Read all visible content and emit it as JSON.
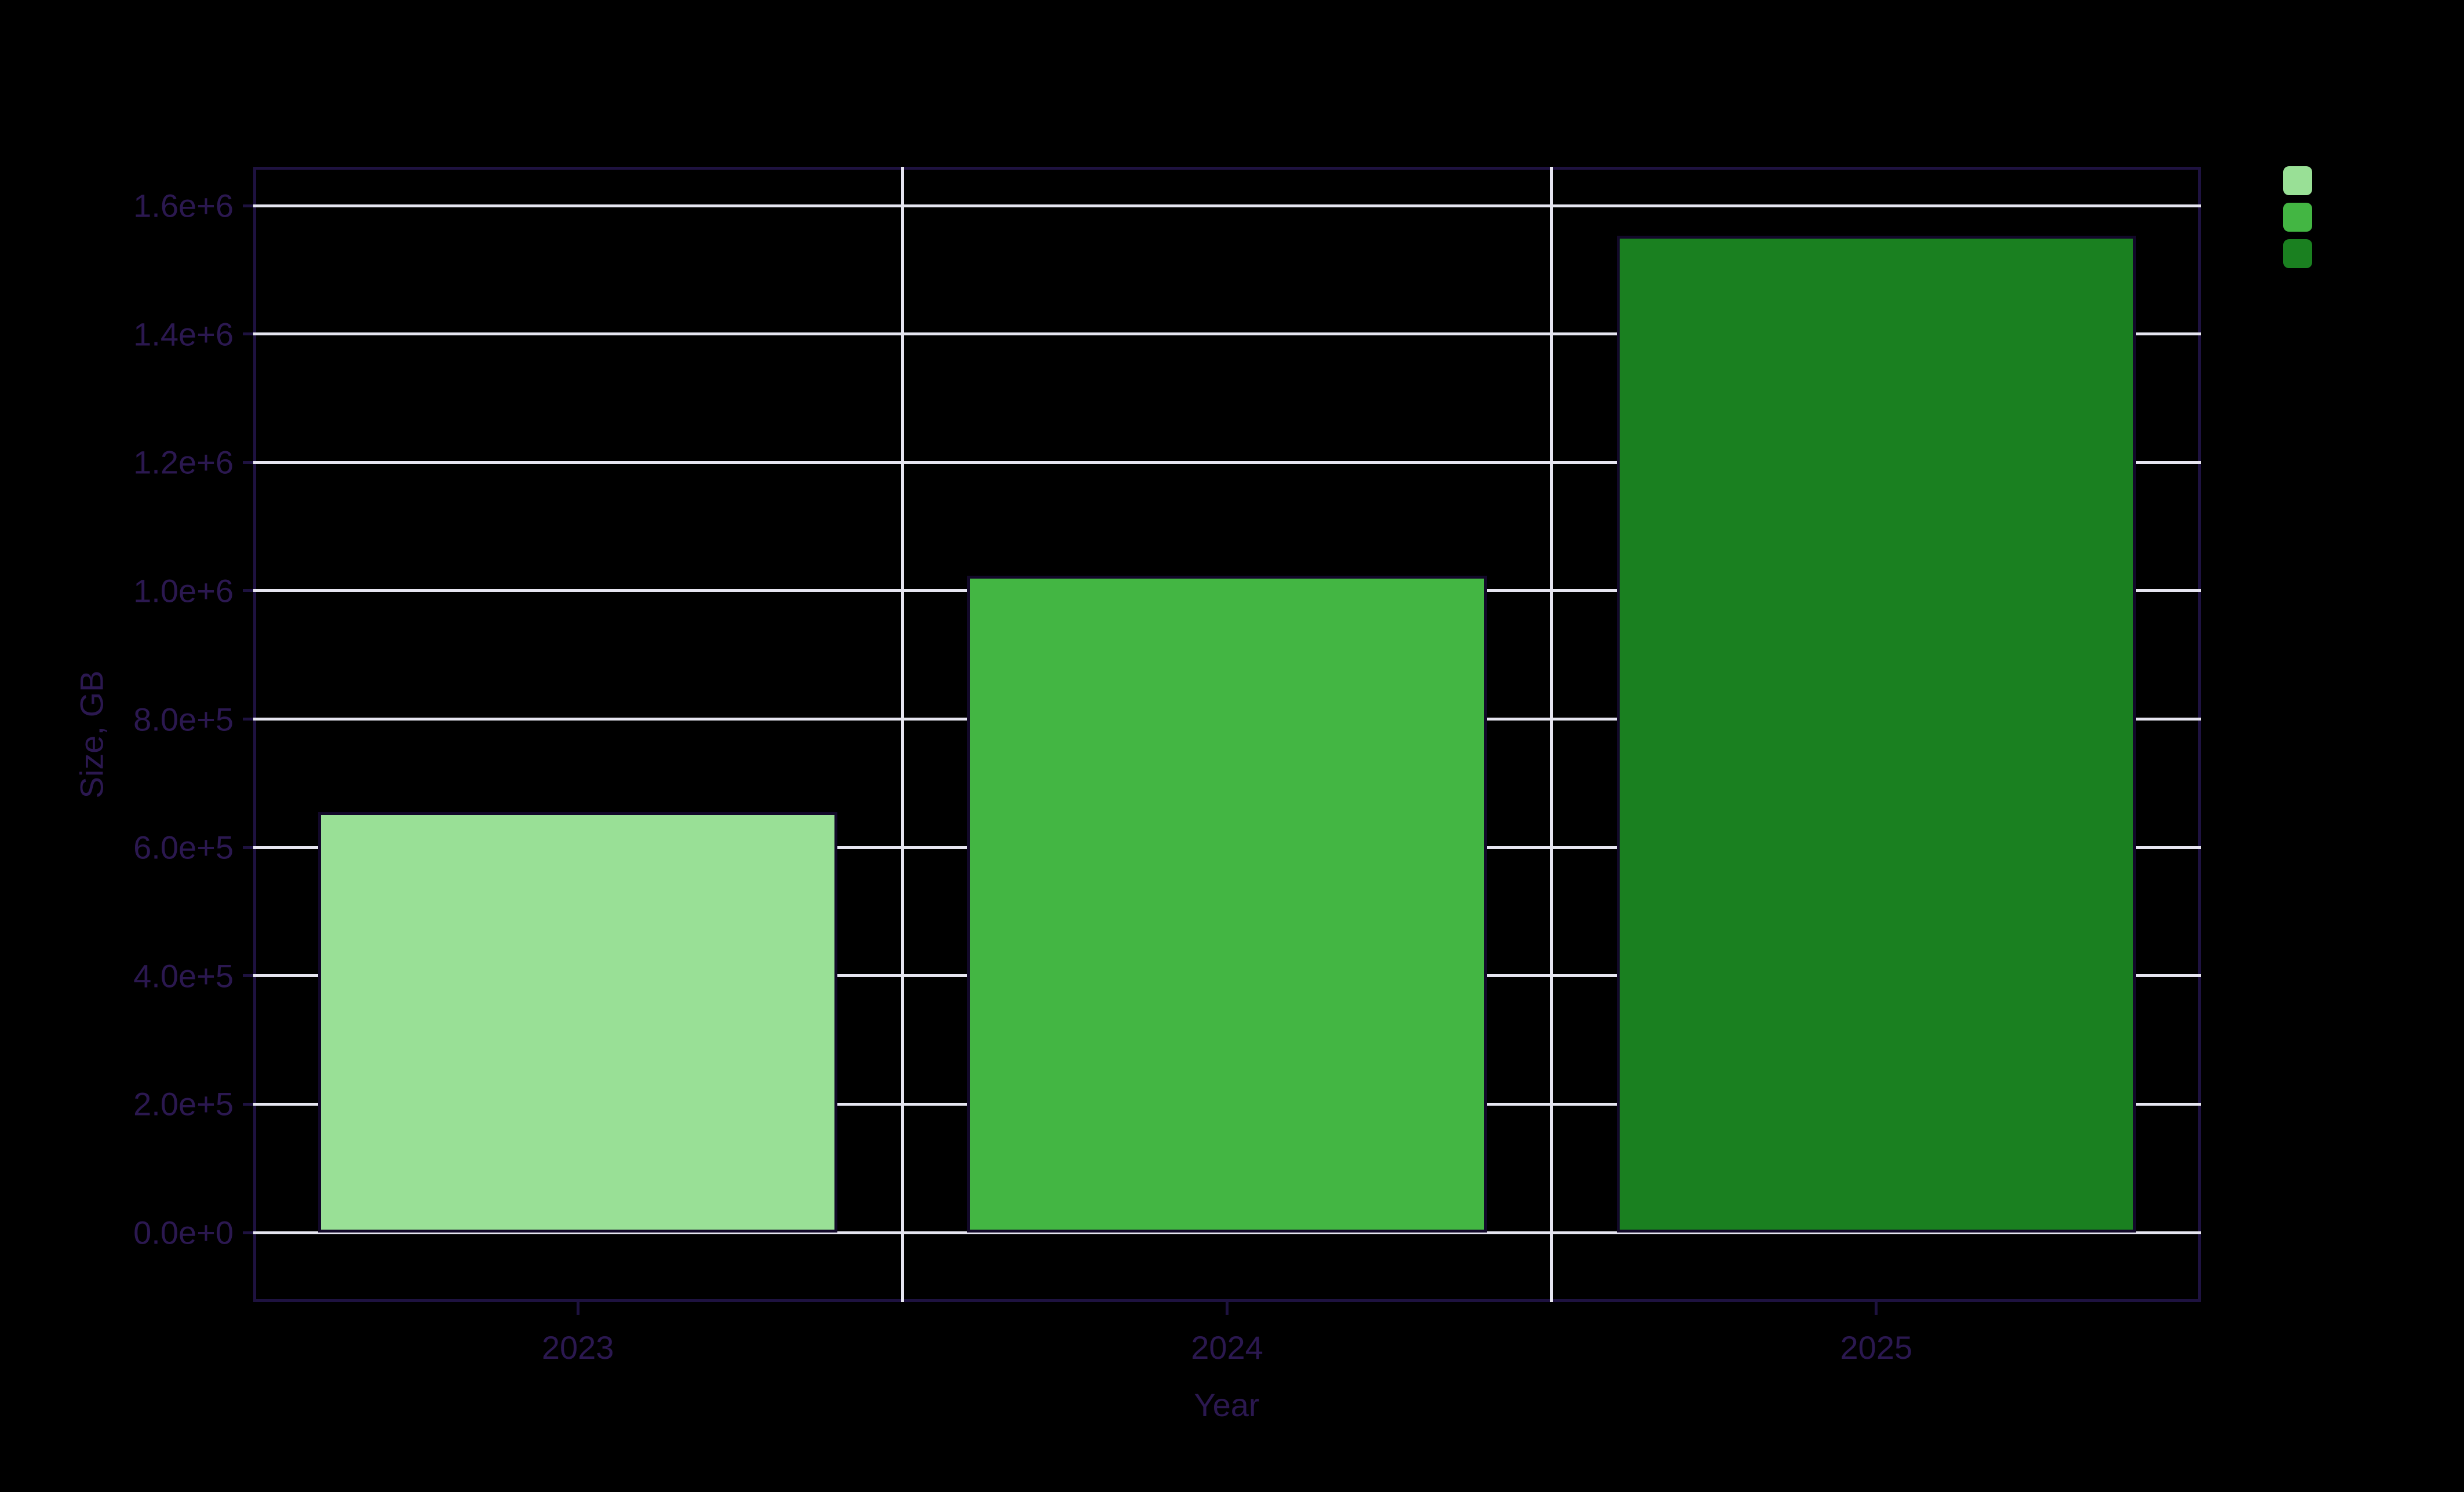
{
  "chart_data": {
    "type": "bar",
    "title": "",
    "categories": [
      "2023",
      "2024",
      "2025"
    ],
    "values": [
      655000,
      1023000,
      1553000
    ],
    "series_colors": [
      "#99E096",
      "#43B643",
      "#1A8020"
    ],
    "xlabel": "Year",
    "ylabel": "Size, GB",
    "ylim": [
      0,
      1600000
    ],
    "ytick_step": 200000,
    "ytick_labels": [
      "0.0e+0",
      "2.0e+5",
      "4.0e+5",
      "6.0e+5",
      "8.0e+5",
      "1.0e+6",
      "1.2e+6",
      "1.4e+6",
      "1.6e+6"
    ],
    "grid": true,
    "bar_gap_fraction": 0.2,
    "legend_position": "top-right"
  },
  "palette": {
    "background": "#000000",
    "axis": "#1E1240",
    "text": "#2B1850",
    "gridline": "#E6E5F0",
    "bar_border": "#120829"
  }
}
